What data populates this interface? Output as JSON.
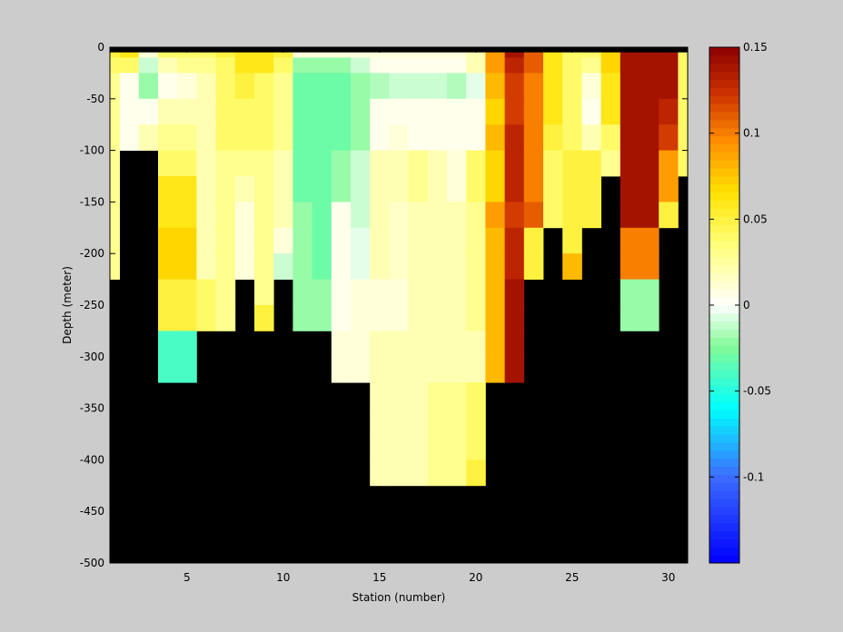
{
  "chart_data": {
    "type": "heatmap",
    "title": "",
    "xlabel": "Station (number)",
    "ylabel": "Depth (meter)",
    "xlim": [
      1,
      31
    ],
    "ylim": [
      -500,
      0
    ],
    "x_ticks": [
      5,
      10,
      15,
      20,
      25,
      30
    ],
    "y_ticks": [
      0,
      -50,
      -100,
      -150,
      -200,
      -250,
      -300,
      -350,
      -400,
      -450,
      -500
    ],
    "colorbar": {
      "range": [
        -0.15,
        0.15
      ],
      "ticks": [
        0.15,
        0.1,
        0.05,
        0,
        -0.05,
        -0.1
      ],
      "tick_labels": [
        "0.15",
        "0.1",
        "0.05",
        "0",
        "-0.05",
        "-0.1"
      ]
    },
    "mask_color": "#000000",
    "stations": [
      1,
      2,
      3,
      4,
      5,
      6,
      7,
      8,
      9,
      10,
      11,
      12,
      13,
      14,
      15,
      16,
      17,
      18,
      19,
      20,
      21,
      22,
      23,
      24,
      25,
      26,
      27,
      28,
      29,
      30,
      31
    ],
    "depth_layers": [
      [
        -5,
        -10
      ],
      [
        -10,
        -25
      ],
      [
        -25,
        -50
      ],
      [
        -50,
        -75
      ],
      [
        -75,
        -100
      ],
      [
        -100,
        -125
      ],
      [
        -125,
        -150
      ],
      [
        -150,
        -175
      ],
      [
        -175,
        -200
      ],
      [
        -200,
        -225
      ],
      [
        -225,
        -250
      ],
      [
        -250,
        -275
      ],
      [
        -275,
        -300
      ],
      [
        -300,
        -325
      ],
      [
        -325,
        -350
      ],
      [
        -350,
        -375
      ],
      [
        -375,
        -400
      ],
      [
        -400,
        -425
      ],
      [
        -425,
        -450
      ],
      [
        -450,
        -475
      ],
      [
        -475,
        -500
      ]
    ],
    "values": [
      [
        0.05,
        0.06,
        0.01,
        0.04,
        0.04,
        0.04,
        0.05,
        0.06,
        0.06,
        0.05,
        0.01,
        0.01,
        0.01,
        0.01,
        0.01,
        0.01,
        0.01,
        0.01,
        0.01,
        0.02,
        0.09,
        0.14,
        0.11,
        0.06,
        0.04,
        0.04,
        0.07,
        0.14,
        0.14,
        0.14,
        0.04
      ],
      [
        0.04,
        0.04,
        -0.01,
        0.02,
        0.03,
        0.03,
        0.04,
        0.06,
        0.06,
        0.04,
        -0.02,
        -0.02,
        -0.02,
        -0.01,
        0.005,
        0.005,
        0.005,
        0.005,
        0.005,
        0.02,
        0.09,
        0.13,
        0.11,
        0.06,
        0.04,
        0.03,
        0.07,
        0.14,
        0.14,
        0.14,
        0.04
      ],
      [
        0.03,
        0.005,
        -0.02,
        0.005,
        0.01,
        0.02,
        0.04,
        0.05,
        0.04,
        0.03,
        -0.03,
        -0.03,
        -0.03,
        -0.02,
        -0.015,
        -0.01,
        -0.01,
        -0.01,
        -0.015,
        -0.005,
        0.08,
        0.12,
        0.1,
        0.06,
        0.04,
        0.01,
        0.06,
        0.14,
        0.14,
        0.14,
        0.04
      ],
      [
        0.03,
        0.005,
        0.005,
        0.02,
        0.02,
        0.02,
        0.04,
        0.04,
        0.04,
        0.03,
        -0.03,
        -0.03,
        -0.03,
        -0.02,
        0.005,
        0.005,
        0.005,
        0.005,
        0.005,
        0.005,
        0.07,
        0.12,
        0.1,
        0.06,
        0.04,
        0.005,
        0.06,
        0.14,
        0.14,
        0.13,
        0.04
      ],
      [
        0.03,
        0.005,
        0.02,
        0.03,
        0.03,
        0.02,
        0.04,
        0.04,
        0.04,
        0.03,
        -0.03,
        -0.03,
        -0.03,
        -0.02,
        0.005,
        0.01,
        0.005,
        0.005,
        0.005,
        0.005,
        0.08,
        0.13,
        0.1,
        0.05,
        0.04,
        0.02,
        0.04,
        0.14,
        0.14,
        0.12,
        0.04
      ],
      [
        0.03,
        null,
        null,
        0.04,
        0.04,
        0.02,
        0.03,
        0.03,
        0.03,
        0.02,
        -0.03,
        -0.03,
        -0.02,
        -0.01,
        0.02,
        0.02,
        0.03,
        0.02,
        0.01,
        0.04,
        0.07,
        0.13,
        0.1,
        0.04,
        0.05,
        0.05,
        0.03,
        0.14,
        0.14,
        0.09,
        0.04
      ],
      [
        0.03,
        null,
        null,
        0.06,
        0.06,
        0.02,
        0.03,
        0.02,
        0.03,
        0.02,
        -0.03,
        -0.03,
        -0.02,
        -0.01,
        0.02,
        0.02,
        0.03,
        0.02,
        0.01,
        0.04,
        0.07,
        0.13,
        0.1,
        0.04,
        0.05,
        0.05,
        null,
        0.14,
        0.14,
        0.09,
        null
      ],
      [
        0.03,
        null,
        null,
        0.06,
        0.06,
        0.02,
        0.03,
        0.01,
        0.03,
        0.02,
        -0.02,
        -0.03,
        0.005,
        -0.01,
        0.02,
        0.015,
        0.02,
        0.02,
        0.02,
        0.03,
        0.09,
        0.12,
        0.11,
        0.04,
        0.05,
        0.05,
        null,
        0.14,
        0.14,
        0.05,
        null
      ],
      [
        0.03,
        null,
        null,
        0.07,
        0.07,
        0.02,
        0.03,
        0.01,
        0.03,
        0.01,
        -0.02,
        -0.03,
        0.005,
        -0.005,
        0.02,
        0.015,
        0.02,
        0.02,
        0.02,
        0.03,
        0.08,
        0.13,
        0.05,
        null,
        0.05,
        null,
        null,
        0.1,
        0.1,
        null,
        null
      ],
      [
        0.03,
        null,
        null,
        0.07,
        0.07,
        0.02,
        0.03,
        0.01,
        0.03,
        -0.01,
        -0.02,
        -0.03,
        0.005,
        -0.005,
        0.02,
        0.015,
        0.02,
        0.02,
        0.02,
        0.03,
        0.08,
        0.13,
        0.05,
        null,
        0.08,
        null,
        null,
        0.1,
        0.1,
        null,
        null
      ],
      [
        null,
        null,
        null,
        0.05,
        0.05,
        0.04,
        0.03,
        null,
        0.03,
        null,
        -0.02,
        -0.02,
        0.005,
        0.01,
        0.01,
        0.01,
        0.02,
        0.02,
        0.02,
        0.03,
        0.08,
        0.14,
        null,
        null,
        null,
        null,
        null,
        -0.02,
        -0.02,
        null,
        null
      ],
      [
        null,
        null,
        null,
        0.05,
        0.05,
        0.04,
        0.03,
        null,
        0.05,
        null,
        -0.02,
        -0.02,
        0.005,
        0.01,
        0.01,
        0.01,
        0.02,
        0.02,
        0.02,
        0.03,
        0.08,
        0.14,
        null,
        null,
        null,
        null,
        null,
        -0.02,
        -0.02,
        null,
        null
      ],
      [
        null,
        null,
        null,
        -0.04,
        -0.04,
        null,
        null,
        null,
        null,
        null,
        null,
        null,
        0.01,
        0.01,
        0.02,
        0.02,
        0.02,
        0.02,
        0.02,
        0.02,
        0.08,
        0.14,
        null,
        null,
        null,
        null,
        null,
        null,
        null,
        null,
        null
      ],
      [
        null,
        null,
        null,
        -0.04,
        -0.04,
        null,
        null,
        null,
        null,
        null,
        null,
        null,
        0.01,
        0.01,
        0.02,
        0.02,
        0.02,
        0.02,
        0.02,
        0.02,
        0.08,
        0.14,
        null,
        null,
        null,
        null,
        null,
        null,
        null,
        null,
        null
      ],
      [
        null,
        null,
        null,
        null,
        null,
        null,
        null,
        null,
        null,
        null,
        null,
        null,
        null,
        null,
        0.02,
        0.02,
        0.02,
        0.03,
        0.03,
        0.04,
        null,
        null,
        null,
        null,
        null,
        null,
        null,
        null,
        null,
        null,
        null
      ],
      [
        null,
        null,
        null,
        null,
        null,
        null,
        null,
        null,
        null,
        null,
        null,
        null,
        null,
        null,
        0.02,
        0.02,
        0.02,
        0.03,
        0.03,
        0.04,
        null,
        null,
        null,
        null,
        null,
        null,
        null,
        null,
        null,
        null,
        null
      ],
      [
        null,
        null,
        null,
        null,
        null,
        null,
        null,
        null,
        null,
        null,
        null,
        null,
        null,
        null,
        0.02,
        0.02,
        0.02,
        0.03,
        0.03,
        0.04,
        null,
        null,
        null,
        null,
        null,
        null,
        null,
        null,
        null,
        null,
        null
      ],
      [
        null,
        null,
        null,
        null,
        null,
        null,
        null,
        null,
        null,
        null,
        null,
        null,
        null,
        null,
        0.02,
        0.02,
        0.02,
        0.03,
        0.03,
        0.05,
        null,
        null,
        null,
        null,
        null,
        null,
        null,
        null,
        null,
        null,
        null
      ],
      [
        null,
        null,
        null,
        null,
        null,
        null,
        null,
        null,
        null,
        null,
        null,
        null,
        null,
        null,
        null,
        null,
        null,
        null,
        null,
        null,
        null,
        null,
        null,
        null,
        null,
        null,
        null,
        null,
        null,
        null,
        null
      ],
      [
        null,
        null,
        null,
        null,
        null,
        null,
        null,
        null,
        null,
        null,
        null,
        null,
        null,
        null,
        null,
        null,
        null,
        null,
        null,
        null,
        null,
        null,
        null,
        null,
        null,
        null,
        null,
        null,
        null,
        null,
        null
      ],
      [
        null,
        null,
        null,
        null,
        null,
        null,
        null,
        null,
        null,
        null,
        null,
        null,
        null,
        null,
        null,
        null,
        null,
        null,
        null,
        null,
        null,
        null,
        null,
        null,
        null,
        null,
        null,
        null,
        null,
        null,
        null
      ]
    ]
  }
}
